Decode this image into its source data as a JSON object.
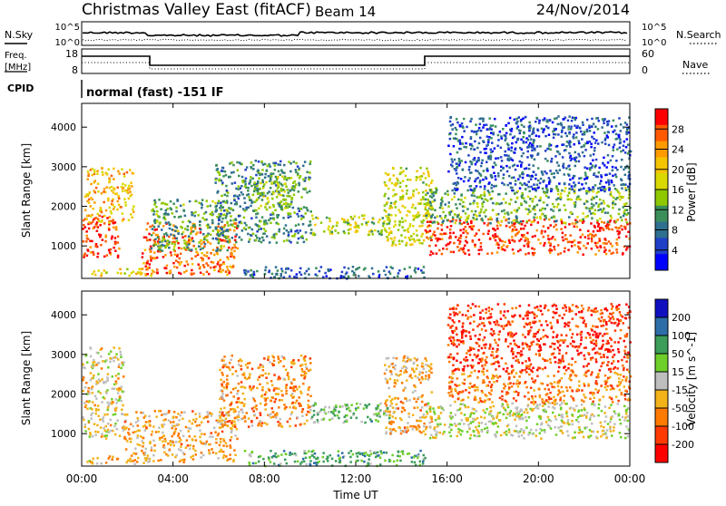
{
  "header": {
    "station": "Christmas Valley East (fitACF)",
    "beam": "Beam 14",
    "date": "24/Nov/2014"
  },
  "panels": {
    "sky": {
      "left_label": "N.Sky",
      "right_label": "N.Search",
      "yticks": [
        "10^5",
        "10^0"
      ]
    },
    "freq": {
      "left_label_top": "Freq.",
      "left_label_bottom": "[MHz]",
      "right_label": "Nave",
      "left_ticks": [
        "18",
        "8"
      ],
      "right_ticks": [
        "60",
        "0"
      ]
    },
    "cpid": {
      "label": "CPID",
      "value": "normal (fast) -151 IF"
    }
  },
  "chart_data": [
    {
      "type": "heatmap",
      "title": "",
      "xlabel": "",
      "ylabel": "Slant Range [km]",
      "xlim": [
        0,
        24
      ],
      "ylim": [
        180,
        4600
      ],
      "yticks": [
        1000,
        2000,
        3000,
        4000
      ],
      "colorbar": {
        "label": "Power [dB]",
        "ticks": [
          "28",
          "24",
          "20",
          "16",
          "12",
          "8",
          "4"
        ],
        "colors": [
          "#ff0000",
          "#ff5a00",
          "#ff9a00",
          "#f5c400",
          "#d9d900",
          "#8fc800",
          "#3b8f5a",
          "#2f6f8f",
          "#2040c8",
          "#0000ff"
        ]
      },
      "regions": [
        {
          "x": [
            0,
            1.6
          ],
          "y": [
            700,
            1800
          ],
          "level": 0.95
        },
        {
          "x": [
            0.1,
            2.3
          ],
          "y": [
            1600,
            3000
          ],
          "level": 0.7
        },
        {
          "x": [
            0.2,
            3.0
          ],
          "y": [
            250,
            450
          ],
          "level": 0.6
        },
        {
          "x": [
            2.6,
            6.8
          ],
          "y": [
            300,
            1600
          ],
          "level": 0.85
        },
        {
          "x": [
            3.0,
            6.5
          ],
          "y": [
            900,
            2200
          ],
          "level": 0.35
        },
        {
          "x": [
            5.8,
            10.0
          ],
          "y": [
            1100,
            3200
          ],
          "level": 0.3
        },
        {
          "x": [
            7.5,
            9.3
          ],
          "y": [
            1800,
            2800
          ],
          "level": 0.45
        },
        {
          "x": [
            10.0,
            13.5
          ],
          "y": [
            1300,
            1800
          ],
          "level": 0.5
        },
        {
          "x": [
            7.0,
            15.0
          ],
          "y": [
            200,
            500
          ],
          "level": 0.2
        },
        {
          "x": [
            13.2,
            15.3
          ],
          "y": [
            1000,
            3000
          ],
          "level": 0.55
        },
        {
          "x": [
            15.0,
            24.0
          ],
          "y": [
            800,
            1700
          ],
          "level": 0.95
        },
        {
          "x": [
            15.0,
            24.0
          ],
          "y": [
            1600,
            2500
          ],
          "level": 0.4
        },
        {
          "x": [
            16.0,
            24.0
          ],
          "y": [
            2400,
            4300
          ],
          "level": 0.15
        }
      ]
    },
    {
      "type": "heatmap",
      "title": "",
      "xlabel": "Time UT",
      "ylabel": "Slant Range [km]",
      "xlim": [
        0,
        24
      ],
      "ylim": [
        180,
        4600
      ],
      "yticks": [
        1000,
        2000,
        3000,
        4000
      ],
      "xticks": [
        "00:00",
        "04:00",
        "08:00",
        "12:00",
        "16:00",
        "20:00",
        "00:00"
      ],
      "colorbar": {
        "label": "Velocity [m s^-1]",
        "ticks": [
          "200",
          "100",
          "50",
          "15",
          "-15",
          "-50",
          "-100",
          "-200"
        ],
        "colors": [
          "#1010c0",
          "#2d6ea8",
          "#3c9d5a",
          "#6ecf2a",
          "#bebebe",
          "#f2b21a",
          "#ff7a00",
          "#ff3a00",
          "#ff0000"
        ]
      },
      "regions": [
        {
          "x": [
            0,
            1.8
          ],
          "y": [
            900,
            3200
          ],
          "level": 0.45
        },
        {
          "x": [
            0.2,
            3.0
          ],
          "y": [
            250,
            450
          ],
          "level": 0.4
        },
        {
          "x": [
            1.8,
            6.8
          ],
          "y": [
            300,
            1600
          ],
          "level": 0.35
        },
        {
          "x": [
            6.0,
            10.0
          ],
          "y": [
            1200,
            3000
          ],
          "level": 0.3
        },
        {
          "x": [
            10.0,
            13.5
          ],
          "y": [
            1300,
            1800
          ],
          "level": 0.65
        },
        {
          "x": [
            7.0,
            15.0
          ],
          "y": [
            200,
            600
          ],
          "level": 0.7
        },
        {
          "x": [
            13.2,
            15.3
          ],
          "y": [
            1000,
            3000
          ],
          "level": 0.35
        },
        {
          "x": [
            15.0,
            24.0
          ],
          "y": [
            900,
            1800
          ],
          "level": 0.5
        },
        {
          "x": [
            16.0,
            24.0
          ],
          "y": [
            1800,
            2600
          ],
          "level": 0.25
        },
        {
          "x": [
            16.0,
            24.0
          ],
          "y": [
            2600,
            4300
          ],
          "level": 0.1
        }
      ]
    }
  ]
}
